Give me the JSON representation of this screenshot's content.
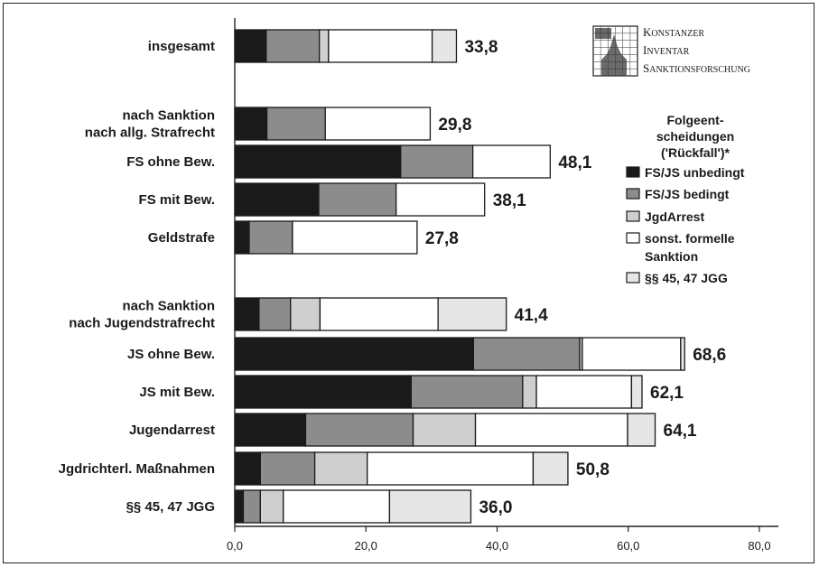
{
  "chart_data": {
    "type": "bar",
    "orientation": "horizontal",
    "stacked": true,
    "xlim": [
      0,
      80
    ],
    "x_ticks": [
      "0,0",
      "20,0",
      "40,0",
      "60,0",
      "80,0"
    ],
    "legend_title": [
      "Folgeent-",
      "scheidungen",
      "('Rückfall')*"
    ],
    "series": [
      {
        "name": "FS/JS unbedingt",
        "color": "#1a1a1a"
      },
      {
        "name": "FS/JS bedingt",
        "color": "#8c8c8c"
      },
      {
        "name": "JgdArrest",
        "color": "#cfcfcf"
      },
      {
        "name": "sonst. formelle Sanktion",
        "color": "#ffffff"
      },
      {
        "name": "§§ 45, 47 JGG",
        "color": "#e6e6e6"
      }
    ],
    "categories": [
      {
        "label": [
          "insgesamt"
        ],
        "values": [
          4.8,
          8.1,
          1.4,
          15.8,
          3.7
        ],
        "total": "33,8"
      },
      {
        "label": [
          "nach Sanktion",
          "nach allg. Strafrecht"
        ],
        "values": [
          4.9,
          8.9,
          0,
          16.0,
          0
        ],
        "total": "29,8"
      },
      {
        "label": [
          "FS ohne Bew."
        ],
        "values": [
          25.3,
          11.0,
          0,
          11.8,
          0
        ],
        "total": "48,1"
      },
      {
        "label": [
          "FS mit Bew."
        ],
        "values": [
          12.8,
          11.8,
          0,
          13.5,
          0
        ],
        "total": "38,1"
      },
      {
        "label": [
          "Geldstrafe"
        ],
        "values": [
          2.2,
          6.6,
          0,
          19.0,
          0
        ],
        "total": "27,8"
      },
      {
        "label": [
          "nach Sanktion",
          "nach Jugendstrafrecht"
        ],
        "values": [
          3.7,
          4.8,
          4.5,
          18.0,
          10.4
        ],
        "total": "41,4"
      },
      {
        "label": [
          "JS ohne Bew."
        ],
        "values": [
          36.4,
          16.2,
          0.4,
          15.0,
          0.6
        ],
        "total": "68,6"
      },
      {
        "label": [
          "JS mit Bew."
        ],
        "values": [
          26.9,
          17.0,
          2.1,
          14.5,
          1.6
        ],
        "total": "62,1"
      },
      {
        "label": [
          "Jugendarrest"
        ],
        "values": [
          10.8,
          16.4,
          9.5,
          23.2,
          4.2
        ],
        "total": "64,1"
      },
      {
        "label": [
          "Jgdrichterl. Maßnahmen"
        ],
        "values": [
          3.9,
          8.3,
          8.0,
          25.3,
          5.3
        ],
        "total": "50,8"
      },
      {
        "label": [
          "§§ 45, 47 JGG"
        ],
        "values": [
          1.3,
          2.6,
          3.5,
          16.2,
          12.4
        ],
        "total": "36,0"
      }
    ]
  },
  "logo": {
    "lines": [
      {
        "initial": "K",
        "rest": "ONSTANZER"
      },
      {
        "initial": "I",
        "rest": "NVENTAR"
      },
      {
        "initial": "S",
        "rest": "ANKTIONSFORSCHUNG"
      }
    ]
  }
}
